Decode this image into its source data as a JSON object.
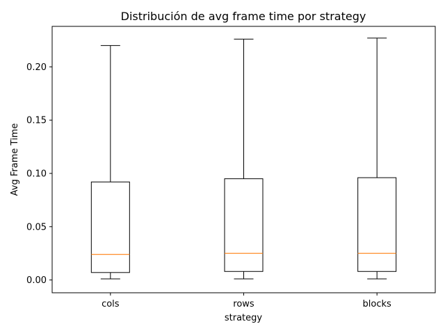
{
  "chart_data": {
    "type": "boxplot",
    "title": "Distribución de avg frame time por strategy",
    "xlabel": "strategy",
    "ylabel": "Avg Frame Time",
    "ylim": [
      -0.012,
      0.238
    ],
    "yticks": [
      0.0,
      0.05,
      0.1,
      0.15,
      0.2
    ],
    "ytick_labels": [
      "0.00",
      "0.05",
      "0.10",
      "0.15",
      "0.20"
    ],
    "categories": [
      "cols",
      "rows",
      "blocks"
    ],
    "boxes": [
      {
        "name": "cols",
        "whisker_low": 0.001,
        "q1": 0.007,
        "median": 0.024,
        "q3": 0.092,
        "whisker_high": 0.22
      },
      {
        "name": "rows",
        "whisker_low": 0.001,
        "q1": 0.008,
        "median": 0.025,
        "q3": 0.095,
        "whisker_high": 0.226
      },
      {
        "name": "blocks",
        "whisker_low": 0.001,
        "q1": 0.008,
        "median": 0.025,
        "q3": 0.096,
        "whisker_high": 0.227
      }
    ],
    "colors": {
      "box": "#000000",
      "median": "#ff7f0e"
    }
  }
}
